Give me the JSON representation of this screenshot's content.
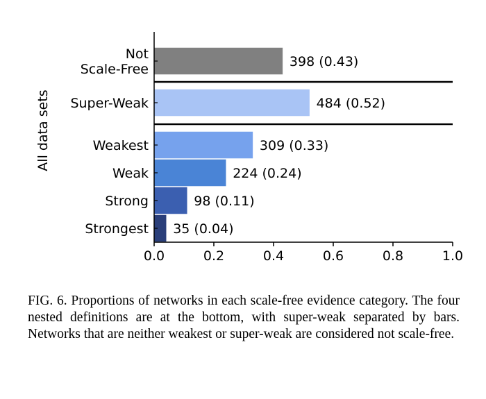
{
  "chart_data": {
    "type": "bar",
    "orientation": "horizontal",
    "ylabel": "All data sets",
    "xlim": [
      0,
      1.0
    ],
    "xticks": [
      "0.0",
      "0.2",
      "0.4",
      "0.6",
      "0.8",
      "1.0"
    ],
    "grid": false,
    "bars": [
      {
        "label_lines": [
          "Not",
          "Scale-Free"
        ],
        "value": 0.43,
        "count": 398,
        "value_label": "398 (0.43)",
        "color": "#808080"
      },
      {
        "label_lines": [
          "Super-Weak"
        ],
        "value": 0.52,
        "count": 484,
        "value_label": "484 (0.52)",
        "color": "#a9c4f5"
      },
      {
        "label_lines": [
          "Weakest"
        ],
        "value": 0.33,
        "count": 309,
        "value_label": "309 (0.33)",
        "color": "#76a2ed"
      },
      {
        "label_lines": [
          "Weak"
        ],
        "value": 0.24,
        "count": 224,
        "value_label": "224 (0.24)",
        "color": "#4a84d6"
      },
      {
        "label_lines": [
          "Strong"
        ],
        "value": 0.11,
        "count": 98,
        "value_label": "98 (0.11)",
        "color": "#3b5fb0"
      },
      {
        "label_lines": [
          "Strongest"
        ],
        "value": 0.04,
        "count": 35,
        "value_label": "35 (0.04)",
        "color": "#2a3f7a"
      }
    ],
    "separators_after": [
      0,
      1
    ]
  },
  "caption": "FIG. 6. Proportions of networks in each scale-free evidence category. The four nested definitions are at the bottom, with super-weak separated by bars. Networks that are neither weakest or super-weak are considered not scale-free."
}
